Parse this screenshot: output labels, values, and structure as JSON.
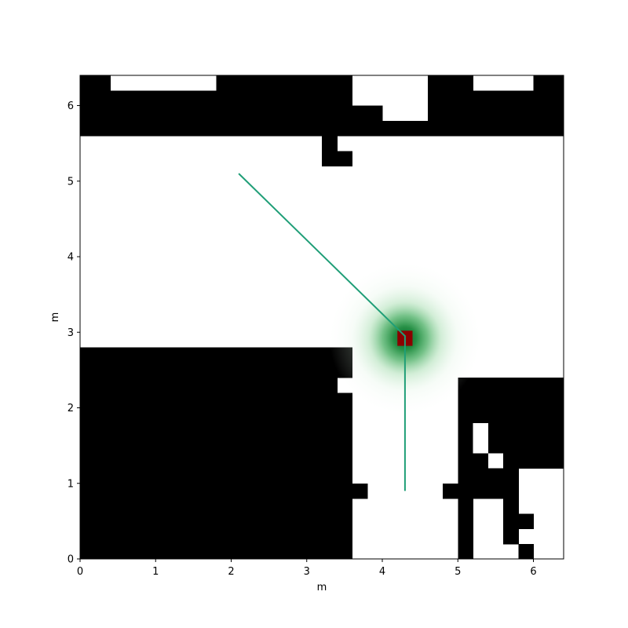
{
  "chart_data": {
    "type": "heatmap",
    "xlabel": "m",
    "ylabel": "m",
    "xlim": [
      0,
      6.4
    ],
    "ylim": [
      0,
      6.4
    ],
    "xticks": [
      "0",
      "1",
      "2",
      "3",
      "4",
      "5",
      "6"
    ],
    "yticks": [
      "0",
      "1",
      "2",
      "3",
      "4",
      "5",
      "6"
    ],
    "grid": false,
    "occupancy_grid": {
      "cell_size": 0.2,
      "occupied_color": "#000000",
      "free_color": "#ffffff",
      "occupied_rects": [
        {
          "x0": 0.0,
          "x1": 0.4,
          "y0": 6.2,
          "y1": 6.4
        },
        {
          "x0": 1.8,
          "x1": 3.6,
          "y0": 6.2,
          "y1": 6.4
        },
        {
          "x0": 4.6,
          "x1": 5.2,
          "y0": 6.2,
          "y1": 6.4
        },
        {
          "x0": 6.0,
          "x1": 6.4,
          "y0": 6.2,
          "y1": 6.4
        },
        {
          "x0": 0.0,
          "x1": 3.6,
          "y0": 6.0,
          "y1": 6.2
        },
        {
          "x0": 4.6,
          "x1": 6.4,
          "y0": 6.0,
          "y1": 6.2
        },
        {
          "x0": 0.0,
          "x1": 4.0,
          "y0": 5.8,
          "y1": 6.0
        },
        {
          "x0": 4.6,
          "x1": 6.4,
          "y0": 5.8,
          "y1": 6.0
        },
        {
          "x0": 0.0,
          "x1": 6.4,
          "y0": 5.6,
          "y1": 5.8
        },
        {
          "x0": 3.2,
          "x1": 3.4,
          "y0": 5.4,
          "y1": 5.6
        },
        {
          "x0": 3.2,
          "x1": 3.6,
          "y0": 5.2,
          "y1": 5.4
        },
        {
          "x0": 0.0,
          "x1": 3.6,
          "y0": 2.4,
          "y1": 2.8
        },
        {
          "x0": 0.0,
          "x1": 3.4,
          "y0": 2.2,
          "y1": 2.4
        },
        {
          "x0": 0.0,
          "x1": 3.6,
          "y0": 0.0,
          "y1": 2.2
        },
        {
          "x0": 3.6,
          "x1": 3.8,
          "y0": 0.8,
          "y1": 1.0
        },
        {
          "x0": 5.0,
          "x1": 6.4,
          "y0": 1.2,
          "y1": 2.4
        },
        {
          "x0": 4.8,
          "x1": 5.0,
          "y0": 0.8,
          "y1": 1.0
        },
        {
          "x0": 5.0,
          "x1": 5.8,
          "y0": 0.8,
          "y1": 1.2
        },
        {
          "x0": 5.0,
          "x1": 5.2,
          "y0": 0.0,
          "y1": 0.8
        },
        {
          "x0": 5.6,
          "x1": 5.8,
          "y0": 0.2,
          "y1": 0.8
        },
        {
          "x0": 5.8,
          "x1": 6.0,
          "y0": 0.4,
          "y1": 0.6
        },
        {
          "x0": 5.8,
          "x1": 6.0,
          "y0": 0.0,
          "y1": 0.2
        }
      ],
      "free_rects": [
        {
          "x0": 5.2,
          "x1": 5.4,
          "y0": 1.4,
          "y1": 1.8
        },
        {
          "x0": 5.4,
          "x1": 5.6,
          "y0": 1.2,
          "y1": 1.4
        }
      ]
    },
    "distribution": {
      "center": [
        4.3,
        2.92
      ],
      "sigma": 0.22,
      "radius": 1.0,
      "color": "#1b8a3c"
    },
    "marker": {
      "center": [
        4.3,
        2.92
      ],
      "size": 0.2,
      "color": "#8b0000"
    },
    "series": [
      {
        "type": "line",
        "color": "#1f9e77",
        "x": [
          2.1,
          4.3,
          4.3
        ],
        "y": [
          5.1,
          2.95,
          0.9
        ]
      }
    ]
  }
}
